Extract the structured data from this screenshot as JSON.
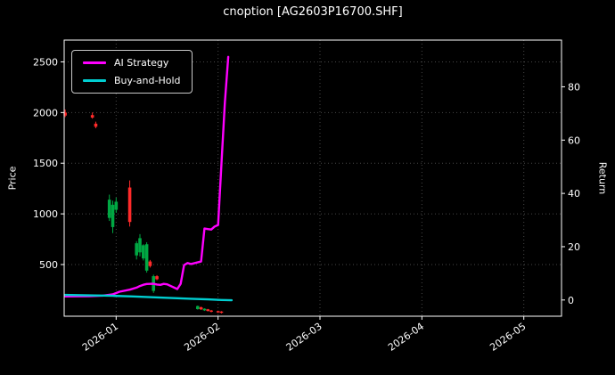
{
  "title": "cnoption [AG2603P16700.SHF]",
  "chart_data": {
    "type": "mixed",
    "subtype": "candlestick-with-lines",
    "title": "cnoption [AG2603P16700.SHF]",
    "background": "#000000",
    "text_color": "#ffffff",
    "grid_color": "#5a5a5a",
    "grid": true,
    "legend_position": "upper-left",
    "left_axis": {
      "label": "Price",
      "ticks": [
        500,
        1000,
        1500,
        2000,
        2500
      ],
      "range": [
        -10,
        2715
      ]
    },
    "right_axis": {
      "label": "Return",
      "ticks": [
        0,
        20,
        40,
        60,
        80
      ],
      "price_at_return_0": 150,
      "price_per_return_unit": 26.3
    },
    "x_axis": {
      "ticks": [
        "2026-01",
        "2026-02",
        "2026-03",
        "2026-04",
        "2026-05"
      ],
      "range_months": [
        -0.51,
        4.37
      ]
    },
    "candles": {
      "up_color": "#00a843",
      "down_color": "#ff2a2a",
      "ohlc": [
        [
          "2025-12-16",
          2000,
          2030,
          1955,
          1970
        ],
        [
          "2025-12-24",
          1975,
          2000,
          1940,
          1950
        ],
        [
          "2025-12-25",
          1890,
          1910,
          1845,
          1860
        ],
        [
          "2025-12-29",
          960,
          1190,
          930,
          1140
        ],
        [
          "2025-12-30",
          870,
          1130,
          810,
          1090
        ],
        [
          "2025-12-31",
          1040,
          1160,
          1010,
          1120
        ],
        [
          "2026-01-05",
          1260,
          1330,
          875,
          920
        ],
        [
          "2026-01-07",
          590,
          730,
          550,
          710
        ],
        [
          "2026-01-08",
          620,
          800,
          580,
          760
        ],
        [
          "2026-01-09",
          560,
          700,
          540,
          690
        ],
        [
          "2026-01-10",
          440,
          720,
          420,
          700
        ],
        [
          "2026-01-11",
          530,
          545,
          470,
          485
        ],
        [
          "2026-01-12",
          240,
          400,
          220,
          385
        ],
        [
          "2026-01-13",
          385,
          395,
          345,
          355
        ],
        [
          "2026-01-25",
          60,
          95,
          55,
          90
        ],
        [
          "2026-01-26",
          78,
          85,
          52,
          58
        ],
        [
          "2026-01-27",
          48,
          68,
          42,
          64
        ],
        [
          "2026-01-28",
          58,
          62,
          36,
          42
        ],
        [
          "2026-01-29",
          46,
          52,
          28,
          34
        ],
        [
          "2026-01-31",
          40,
          45,
          22,
          28
        ],
        [
          "2026-02-02",
          36,
          40,
          18,
          24
        ]
      ]
    },
    "series": [
      {
        "name": "AI Strategy",
        "color": "#ff00ff",
        "points": [
          [
            "2025-12-16",
            185
          ],
          [
            "2025-12-19",
            186
          ],
          [
            "2025-12-23",
            188
          ],
          [
            "2025-12-27",
            193
          ],
          [
            "2025-12-30",
            205
          ],
          [
            "2026-01-02",
            232
          ],
          [
            "2026-01-05",
            252
          ],
          [
            "2026-01-07",
            272
          ],
          [
            "2026-01-08",
            288
          ],
          [
            "2026-01-09",
            300
          ],
          [
            "2026-01-10",
            308
          ],
          [
            "2026-01-12",
            310
          ],
          [
            "2026-01-13",
            303
          ],
          [
            "2026-01-14",
            299
          ],
          [
            "2026-01-15",
            309
          ],
          [
            "2026-01-16",
            305
          ],
          [
            "2026-01-19",
            258
          ],
          [
            "2026-01-20",
            310
          ],
          [
            "2026-01-21",
            495
          ],
          [
            "2026-01-22",
            515
          ],
          [
            "2026-01-23",
            505
          ],
          [
            "2026-01-26",
            530
          ],
          [
            "2026-01-27",
            855
          ],
          [
            "2026-01-28",
            850
          ],
          [
            "2026-01-29",
            845
          ],
          [
            "2026-01-30",
            875
          ],
          [
            "2026-01-31",
            890
          ],
          [
            "2026-02-02",
            1500
          ],
          [
            "2026-02-03",
            2100
          ],
          [
            "2026-02-04",
            2550
          ]
        ]
      },
      {
        "name": "Buy-and-Hold",
        "color": "#00ced1",
        "points": [
          [
            "2025-12-16",
            200
          ],
          [
            "2025-12-23",
            196
          ],
          [
            "2025-12-30",
            191
          ],
          [
            "2026-01-06",
            185
          ],
          [
            "2026-01-10",
            180
          ],
          [
            "2026-01-14",
            174
          ],
          [
            "2026-01-19",
            168
          ],
          [
            "2026-01-23",
            162
          ],
          [
            "2026-01-28",
            156
          ],
          [
            "2026-02-02",
            150
          ],
          [
            "2026-02-05",
            147
          ]
        ]
      }
    ]
  }
}
